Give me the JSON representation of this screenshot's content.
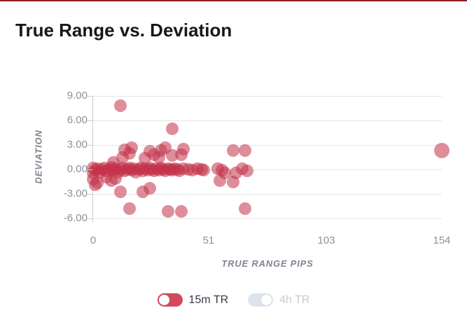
{
  "page": {
    "title": "True Range vs. Deviation",
    "accent_top_border_color": "#8f1f24",
    "background": "#ffffff"
  },
  "chart_data": {
    "type": "scatter",
    "title": "True Range vs. Deviation",
    "xlabel": "TRUE RANGE PIPS",
    "ylabel": "DEVIATION",
    "xlim": [
      0,
      154
    ],
    "ylim": [
      -6,
      9
    ],
    "x_ticks": [
      0,
      51,
      103,
      154
    ],
    "x_tick_labels": [
      "0",
      "51",
      "103",
      "154"
    ],
    "y_ticks": [
      9,
      6,
      3,
      0,
      -3,
      -6
    ],
    "y_tick_labels": [
      "9.00",
      "6.00",
      "3.00",
      "0.00",
      "-3.00",
      "-6.00"
    ],
    "grid": "horizontal-only",
    "legend_position": "bottom",
    "point_color": "#c23248",
    "point_alpha": 0.55,
    "point_radius": 9,
    "series": [
      {
        "name": "15m TR",
        "visible": true,
        "points": [
          [
            12,
            7.8
          ],
          [
            35,
            5.0
          ],
          [
            154,
            2.3,
            11
          ],
          [
            14,
            2.4
          ],
          [
            17,
            2.7
          ],
          [
            25,
            2.2
          ],
          [
            30,
            2.3
          ],
          [
            32,
            2.7
          ],
          [
            40,
            2.5
          ],
          [
            62,
            2.3
          ],
          [
            67,
            2.3
          ],
          [
            13,
            1.5
          ],
          [
            16,
            2.0
          ],
          [
            23,
            1.4
          ],
          [
            27,
            1.8
          ],
          [
            29,
            1.5
          ],
          [
            35,
            1.7
          ],
          [
            39,
            1.8
          ],
          [
            9,
            0.9
          ],
          [
            0,
            0.2
          ],
          [
            0,
            -0.4
          ],
          [
            1,
            -0.1
          ],
          [
            2,
            0.1
          ],
          [
            3,
            -0.3
          ],
          [
            4,
            0
          ],
          [
            5,
            0.2
          ],
          [
            6,
            -0.2
          ],
          [
            7,
            0
          ],
          [
            8,
            0.3
          ],
          [
            9,
            -0.1
          ],
          [
            10,
            0.1
          ],
          [
            11,
            -0.3
          ],
          [
            12,
            0
          ],
          [
            13,
            0.2
          ],
          [
            14,
            -0.2
          ],
          [
            15,
            0
          ],
          [
            16,
            0.2
          ],
          [
            17,
            -0.1
          ],
          [
            18,
            0.1
          ],
          [
            19,
            -0.3
          ],
          [
            20,
            0
          ],
          [
            21,
            0.2
          ],
          [
            22,
            -0.2
          ],
          [
            23,
            0.1
          ],
          [
            24,
            -0.1
          ],
          [
            25,
            0.2
          ],
          [
            26,
            0
          ],
          [
            27,
            -0.2
          ],
          [
            28,
            0.1
          ],
          [
            29,
            -0.1
          ],
          [
            30,
            0.2
          ],
          [
            31,
            0
          ],
          [
            32,
            -0.2
          ],
          [
            33,
            0.1
          ],
          [
            34,
            0
          ],
          [
            35,
            -0.1
          ],
          [
            36,
            0.1
          ],
          [
            37,
            0
          ],
          [
            38,
            -0.2
          ],
          [
            40,
            0.1
          ],
          [
            42,
            0
          ],
          [
            44,
            -0.1
          ],
          [
            46,
            0.1
          ],
          [
            48,
            0
          ],
          [
            49,
            -0.1
          ],
          [
            55,
            0.1
          ],
          [
            57,
            -0.1
          ],
          [
            58,
            -0.4
          ],
          [
            63,
            -0.4
          ],
          [
            66,
            0.1
          ],
          [
            68,
            -0.2
          ],
          [
            56,
            -1.4
          ],
          [
            62,
            -1.5
          ],
          [
            2,
            -1.6
          ],
          [
            6,
            -0.9
          ],
          [
            8,
            -1.4
          ],
          [
            10,
            -1.1
          ],
          [
            0,
            -1.2
          ],
          [
            1,
            -1.9
          ],
          [
            12,
            -2.7
          ],
          [
            22,
            -2.7
          ],
          [
            25,
            -2.3
          ],
          [
            16,
            -4.8
          ],
          [
            33,
            -5.1
          ],
          [
            39,
            -5.1
          ],
          [
            67,
            -4.8
          ]
        ]
      },
      {
        "name": "4h TR",
        "visible": false,
        "points": []
      }
    ]
  },
  "legend": {
    "items": [
      {
        "label": "15m TR",
        "active": true,
        "pill_color": "#d2495c",
        "label_color": "#3b3c46",
        "knob_side": "left"
      },
      {
        "label": "4h TR",
        "active": false,
        "pill_color": "#dee4ec",
        "label_color": "#c5ccd6",
        "knob_side": "right"
      }
    ]
  }
}
